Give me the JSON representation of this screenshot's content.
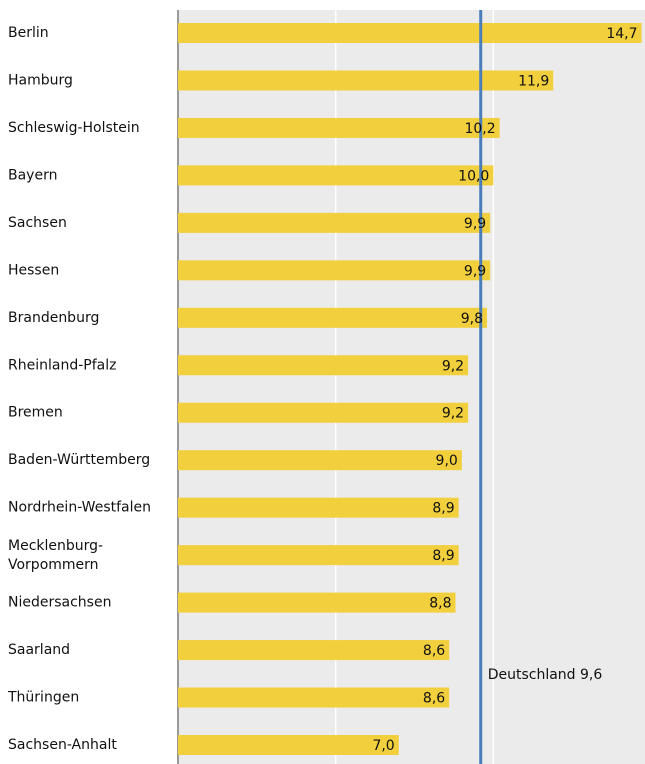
{
  "chart_data": {
    "type": "bar",
    "orientation": "horizontal",
    "categories": [
      "Berlin",
      "Hamburg",
      "Schleswig-Holstein",
      "Bayern",
      "Sachsen",
      "Hessen",
      "Brandenburg",
      "Rheinland-Pfalz",
      "Bremen",
      "Baden-Württemberg",
      "Nordrhein-Westfalen",
      "Mecklenburg-Vorpommern",
      "Niedersachsen",
      "Saarland",
      "Thüringen",
      "Sachsen-Anhalt"
    ],
    "values": [
      14.7,
      11.9,
      10.2,
      10.0,
      9.9,
      9.9,
      9.8,
      9.2,
      9.2,
      9.0,
      8.9,
      8.9,
      8.8,
      8.6,
      8.6,
      7.0
    ],
    "value_labels": [
      "14,7",
      "11,9",
      "10,2",
      "10,0",
      "9,9",
      "9,9",
      "9,8",
      "9,2",
      "9,2",
      "9,0",
      "8,9",
      "8,9",
      "8,8",
      "8,6",
      "8,6",
      "7,0"
    ],
    "color": "#f2cf3c",
    "xlim": [
      0,
      15
    ],
    "xticks": [
      0,
      5,
      10
    ],
    "grid": true,
    "reference_line": {
      "value": 9.6,
      "label": "Deutschland 9,6",
      "color": "#4a7ebb"
    }
  }
}
